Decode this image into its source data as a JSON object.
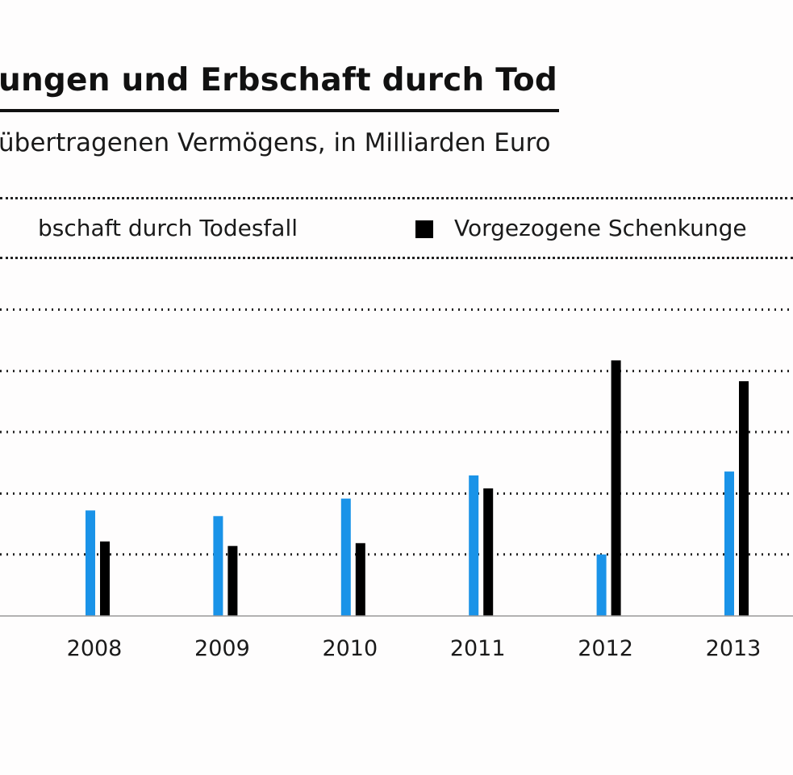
{
  "chart_data": {
    "type": "bar",
    "title": "ungen und Erbschaft durch Tod",
    "subtitle": "übertragenen Vermögens, in Milliarden Euro",
    "categories": [
      "2008",
      "2009",
      "2010",
      "2011",
      "2012",
      "2013"
    ],
    "series": [
      {
        "name": "bschaft durch Todesfall",
        "color": "#1a93e8",
        "values": [
          18.7,
          17.7,
          20.8,
          24.9,
          10.9,
          25.6
        ]
      },
      {
        "name": "Vorgezogene Schenkunge",
        "color": "#000000",
        "values": [
          13.2,
          12.4,
          12.9,
          22.6,
          45.3,
          41.6
        ]
      }
    ],
    "ylim": [
      0,
      62
    ],
    "gridlines": [
      10.9,
      21.7,
      32.6,
      43.4,
      54.3
    ],
    "grid": true,
    "legend": "top",
    "xlabel": "",
    "ylabel": ""
  }
}
